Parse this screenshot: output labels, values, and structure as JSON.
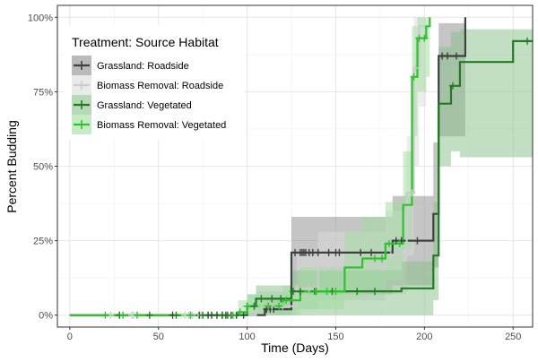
{
  "chart_data": {
    "type": "line",
    "title": "",
    "xlabel": "Time (Days)",
    "ylabel": "Percent Budding",
    "xlim": [
      -7,
      261
    ],
    "ylim": [
      -0.04,
      1.04
    ],
    "x_ticks": [
      0,
      50,
      100,
      150,
      200,
      250
    ],
    "x_tick_labels": [
      "0",
      "50",
      "100",
      "150",
      "200",
      "250"
    ],
    "y_ticks": [
      0,
      0.25,
      0.5,
      0.75,
      1.0
    ],
    "y_tick_labels": [
      "0%",
      "25%",
      "50%",
      "75%",
      "100%"
    ],
    "grid": true,
    "legend": {
      "title": "Treatment: Source Habitat",
      "placement": "top-left",
      "entries": [
        "Grassland: Roadside",
        "Biomass Removal: Roadside",
        "Grassland: Vegetated",
        "Biomass Removal: Vegetated"
      ]
    },
    "series": [
      {
        "name": "Grassland: Roadside",
        "color": "#404040",
        "fill": "#8c8c8c",
        "steps": [
          [
            0,
            0
          ],
          [
            110,
            0.02
          ],
          [
            125,
            0.21
          ],
          [
            182,
            0.25
          ],
          [
            205,
            0.34
          ],
          [
            208,
            0.87
          ],
          [
            223,
            1.0
          ]
        ],
        "ci": [
          [
            0,
            0,
            0
          ],
          [
            110,
            0,
            0.06
          ],
          [
            125,
            0.07,
            0.33
          ],
          [
            182,
            0.1,
            0.4
          ],
          [
            205,
            0.16,
            0.58
          ],
          [
            208,
            0.6,
            0.98
          ],
          [
            223,
            0.6,
            1.0
          ]
        ],
        "end": 223,
        "censored": [
          58,
          73,
          78,
          80,
          83,
          86,
          88,
          91,
          94,
          98,
          111,
          113,
          115,
          127,
          130,
          131,
          132,
          133,
          135,
          137,
          140,
          146,
          150,
          152,
          164,
          170,
          184,
          187,
          196,
          210,
          213,
          218
        ]
      },
      {
        "name": "Biomass Removal: Roadside",
        "color": "#cccccc",
        "fill": "#dcdcdc",
        "steps": [
          [
            0,
            0
          ],
          [
            105,
            0.03
          ],
          [
            128,
            0.09
          ],
          [
            140,
            0.16
          ],
          [
            178,
            0.2
          ],
          [
            190,
            0.41
          ],
          [
            194,
            0.83
          ],
          [
            197,
            0.97
          ]
        ],
        "ci": [
          [
            0,
            0,
            0
          ],
          [
            105,
            0,
            0.08
          ],
          [
            128,
            0.02,
            0.2
          ],
          [
            140,
            0.05,
            0.28
          ],
          [
            178,
            0.07,
            0.35
          ],
          [
            190,
            0.2,
            0.6
          ],
          [
            194,
            0.5,
            1.0
          ],
          [
            197,
            0.7,
            1.0
          ]
        ],
        "end": 201,
        "censored": [
          23,
          35,
          36,
          65,
          67,
          69,
          74,
          108,
          112,
          114,
          120,
          126,
          128,
          135,
          138,
          141,
          144,
          151,
          176,
          181,
          193,
          195
        ]
      },
      {
        "name": "Grassland: Vegetated",
        "color": "#237a23",
        "fill": "#87c087",
        "steps": [
          [
            0,
            0
          ],
          [
            100,
            0.03
          ],
          [
            105,
            0.055
          ],
          [
            125,
            0.08
          ],
          [
            187,
            0.09
          ],
          [
            205,
            0.2
          ],
          [
            208,
            0.71
          ],
          [
            215,
            0.77
          ],
          [
            220,
            0.85
          ],
          [
            250,
            0.92
          ]
        ],
        "ci": [
          [
            0,
            0,
            0
          ],
          [
            100,
            0,
            0.07
          ],
          [
            105,
            0,
            0.1
          ],
          [
            125,
            0,
            0.15
          ],
          [
            187,
            0,
            0.18
          ],
          [
            205,
            0.05,
            0.38
          ],
          [
            208,
            0.5,
            0.9
          ],
          [
            215,
            0.55,
            0.95
          ],
          [
            220,
            0.53,
            0.96
          ],
          [
            250,
            0.53,
            0.96
          ]
        ],
        "end": 261,
        "censored": [
          28,
          45,
          60,
          75,
          86,
          89,
          100,
          104,
          108,
          114,
          119,
          126,
          130,
          138,
          148,
          162,
          172,
          216,
          258
        ]
      },
      {
        "name": "Biomass Removal: Vegetated",
        "color": "#2ec22e",
        "fill": "#9ede9e",
        "steps": [
          [
            0,
            0
          ],
          [
            95,
            0.01
          ],
          [
            100,
            0.03
          ],
          [
            120,
            0.05
          ],
          [
            130,
            0.08
          ],
          [
            155,
            0.16
          ],
          [
            165,
            0.19
          ],
          [
            178,
            0.24
          ],
          [
            188,
            0.37
          ],
          [
            193,
            0.8
          ],
          [
            196,
            0.93
          ],
          [
            201,
            0.97
          ],
          [
            203,
            1.0
          ]
        ],
        "ci": [
          [
            0,
            0,
            0
          ],
          [
            95,
            0,
            0.05
          ],
          [
            100,
            0,
            0.07
          ],
          [
            120,
            0,
            0.1
          ],
          [
            130,
            0.02,
            0.16
          ],
          [
            155,
            0.06,
            0.28
          ],
          [
            165,
            0.09,
            0.33
          ],
          [
            178,
            0.12,
            0.38
          ],
          [
            188,
            0.22,
            0.55
          ],
          [
            193,
            0.6,
            0.97
          ],
          [
            196,
            0.75,
            1.0
          ],
          [
            201,
            0.8,
            1.0
          ],
          [
            203,
            0.8,
            1.0
          ]
        ],
        "end": 203,
        "censored": [
          20,
          30,
          38,
          68,
          92,
          96,
          100,
          112,
          118,
          122,
          139,
          145,
          150,
          172,
          176,
          180,
          186,
          194,
          197,
          200
        ]
      }
    ]
  }
}
